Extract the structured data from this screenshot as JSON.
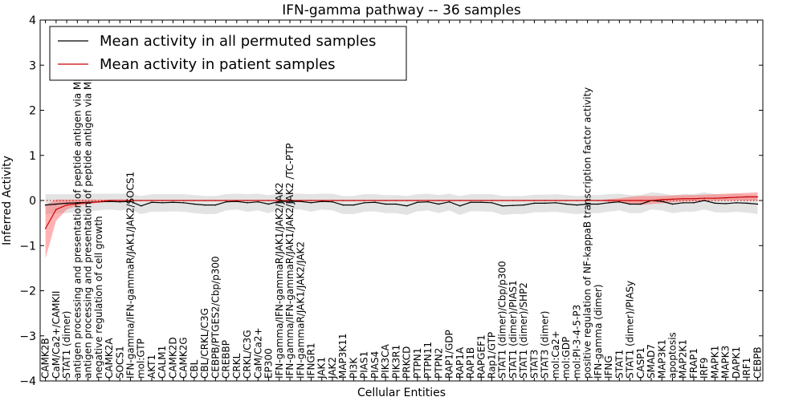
{
  "chart_data": {
    "type": "line",
    "title": "IFN-gamma pathway -- 36 samples",
    "xlabel": "Cellular Entities",
    "ylabel": "Inferred Activity",
    "ylim": [
      -4,
      4
    ],
    "yticks": [
      -4,
      -3,
      -2,
      -1,
      0,
      1,
      2,
      3,
      4
    ],
    "ytick_labels": [
      "−4",
      "−3",
      "−2",
      "−1",
      "0",
      "1",
      "2",
      "3",
      "4"
    ],
    "legend_position": "top-left",
    "categories": [
      "CAMK2B",
      "CaM/Ca2+/CAMKII",
      "STAT1 (dimer)",
      "antigen processing and presentation of peptide antigen via MHC class I",
      "antigen processing and presentation of peptide antigen via MHC class II",
      "negative regulation of cell growth",
      "CAMK2A",
      "SOCS1",
      "IFN-gamma/IFN-gammaR/JAK1/JAK2/SOCS1",
      "mol:GTP",
      "AKT1",
      "CALM1",
      "CAMK2D",
      "CAMK2G",
      "CBL",
      "CBL/CRKL/C3G",
      "CEBPB/PTGES2/Cbp/p300",
      "CREBBP",
      "CRKL",
      "CRKL/C3G",
      "CaM/Ca2+",
      "EP300",
      "IFN-gamma/IFN-gammaR/JAK1/JAK2/JAK2",
      "IFN-gamma/IFN-gammaR/JAK1/JAK2/JAK2 /TC-PTP",
      "IFN-gammaR/JAK1/JAK2/JAK2",
      "IFNGR1",
      "JAK1",
      "JAK2",
      "MAP3K11",
      "PI3K",
      "PIAS1",
      "PIAS4",
      "PIK3CA",
      "PIK3R1",
      "PRKCD",
      "PTPN1",
      "PTPN11",
      "PTPN2",
      "RAP1/GDP",
      "RAP1A",
      "RAP1B",
      "RAPGEF1",
      "Rap1/GTP",
      "STAT1 (dimer)/Cbp/p300",
      "STAT1 (dimer)/PIAS1",
      "STAT1 (dimer)/SHP2",
      "STAT3",
      "STAT3 (dimer)",
      "mol:Ca2+",
      "mol:GDP",
      "mol:PI-3-4-5-P3",
      "positive regulation of NF-kappaB transcription factor activity",
      "IFN-gamma (dimer)",
      "IFNG",
      "STAT1",
      "STAT1 (dimer)/PIASy",
      "CASP1",
      "SMAD7",
      "MAP3K1",
      "apoptosis",
      "MAP2K1",
      "FRAP1",
      "IRF9",
      "MAPK1",
      "MAPK3",
      "DAPK1",
      "IRF1",
      "CEBPB"
    ],
    "series": [
      {
        "name": "Mean activity in all permuted samples",
        "color": "#000000",
        "values": [
          -0.1,
          -0.08,
          -0.06,
          -0.05,
          -0.04,
          -0.03,
          -0.02,
          -0.03,
          -0.02,
          -0.12,
          -0.04,
          -0.05,
          -0.04,
          -0.05,
          -0.08,
          -0.1,
          -0.1,
          -0.03,
          -0.02,
          -0.05,
          -0.03,
          -0.08,
          -0.02,
          -0.02,
          -0.02,
          -0.05,
          -0.02,
          -0.03,
          -0.1,
          -0.1,
          -0.05,
          -0.04,
          -0.08,
          -0.08,
          -0.12,
          -0.04,
          -0.03,
          -0.08,
          -0.03,
          -0.12,
          -0.04,
          -0.04,
          -0.05,
          -0.12,
          -0.11,
          -0.1,
          -0.06,
          -0.06,
          -0.05,
          -0.08,
          -0.1,
          -0.08,
          -0.08,
          -0.05,
          -0.03,
          -0.08,
          -0.08,
          0.0,
          -0.02,
          -0.08,
          -0.05,
          -0.05,
          0.0,
          -0.06,
          -0.07,
          -0.05,
          -0.06,
          -0.08
        ],
        "band_lower": [
          -0.3,
          -0.28,
          -0.28,
          -0.25,
          -0.24,
          -0.22,
          -0.2,
          -0.22,
          -0.2,
          -0.3,
          -0.25,
          -0.25,
          -0.24,
          -0.25,
          -0.28,
          -0.3,
          -0.3,
          -0.22,
          -0.2,
          -0.25,
          -0.22,
          -0.28,
          -0.2,
          -0.2,
          -0.2,
          -0.25,
          -0.2,
          -0.22,
          -0.3,
          -0.3,
          -0.25,
          -0.24,
          -0.28,
          -0.28,
          -0.32,
          -0.24,
          -0.22,
          -0.28,
          -0.22,
          -0.32,
          -0.24,
          -0.24,
          -0.25,
          -0.32,
          -0.3,
          -0.3,
          -0.26,
          -0.26,
          -0.25,
          -0.28,
          -0.3,
          -0.28,
          -0.28,
          -0.25,
          -0.22,
          -0.28,
          -0.28,
          -0.2,
          -0.22,
          -0.28,
          -0.25,
          -0.25,
          -0.2,
          -0.26,
          -0.27,
          -0.25,
          -0.27,
          -0.3
        ],
        "band_upper": [
          0.14,
          0.14,
          0.14,
          0.14,
          0.15,
          0.15,
          0.15,
          0.15,
          0.15,
          0.1,
          0.14,
          0.14,
          0.14,
          0.14,
          0.12,
          0.1,
          0.1,
          0.14,
          0.15,
          0.14,
          0.15,
          0.12,
          0.15,
          0.15,
          0.15,
          0.14,
          0.15,
          0.15,
          0.1,
          0.1,
          0.14,
          0.14,
          0.12,
          0.12,
          0.1,
          0.14,
          0.15,
          0.12,
          0.15,
          0.1,
          0.14,
          0.14,
          0.14,
          0.1,
          0.1,
          0.1,
          0.13,
          0.13,
          0.14,
          0.12,
          0.1,
          0.12,
          0.12,
          0.14,
          0.15,
          0.12,
          0.12,
          0.18,
          0.16,
          0.12,
          0.14,
          0.14,
          0.18,
          0.14,
          0.13,
          0.14,
          0.13,
          0.12
        ]
      },
      {
        "name": "Mean activity in patient samples",
        "color": "#cc0000",
        "values": [
          -0.62,
          -0.2,
          -0.1,
          -0.07,
          -0.05,
          -0.03,
          0.0,
          0.0,
          0.0,
          0.0,
          0.0,
          0.0,
          0.0,
          0.0,
          0.0,
          0.0,
          0.0,
          0.0,
          0.0,
          0.0,
          0.0,
          0.0,
          0.0,
          0.0,
          0.0,
          0.0,
          0.0,
          0.0,
          0.0,
          0.0,
          0.0,
          0.0,
          0.0,
          0.0,
          0.0,
          0.0,
          0.0,
          0.0,
          0.0,
          0.0,
          0.0,
          0.0,
          0.0,
          0.0,
          0.0,
          0.0,
          0.0,
          0.0,
          0.0,
          0.0,
          0.0,
          0.0,
          0.0,
          0.0,
          0.0,
          0.0,
          0.0,
          0.0,
          0.02,
          0.03,
          0.04,
          0.04,
          0.05,
          0.05,
          0.06,
          0.07,
          0.08,
          0.08
        ],
        "band_lower": [
          -1.28,
          -0.45,
          -0.2,
          -0.12,
          -0.08,
          -0.05,
          -0.02,
          -0.01,
          -0.01,
          0.0,
          0.0,
          0.0,
          0.0,
          0.0,
          0.0,
          0.0,
          0.0,
          0.0,
          0.0,
          0.0,
          0.0,
          0.0,
          0.0,
          0.0,
          0.0,
          0.0,
          0.0,
          0.0,
          0.0,
          0.0,
          0.0,
          0.0,
          0.0,
          0.0,
          0.0,
          0.0,
          0.0,
          0.0,
          0.0,
          0.0,
          0.0,
          0.0,
          0.0,
          0.0,
          0.0,
          0.0,
          0.0,
          0.0,
          0.0,
          0.0,
          0.0,
          0.0,
          0.0,
          -0.03,
          -0.05,
          -0.08,
          -0.1,
          -0.08,
          -0.06,
          -0.04,
          -0.02,
          -0.02,
          0.0,
          0.0,
          0.0,
          0.0,
          0.0,
          0.0
        ],
        "band_upper": [
          -0.1,
          0.02,
          0.02,
          0.02,
          0.02,
          0.02,
          0.02,
          0.02,
          0.01,
          0.0,
          0.0,
          0.0,
          0.0,
          0.0,
          0.0,
          0.0,
          0.0,
          0.0,
          0.0,
          0.0,
          0.0,
          0.0,
          0.0,
          0.0,
          0.0,
          0.0,
          0.0,
          0.0,
          0.0,
          0.0,
          0.0,
          0.0,
          0.0,
          0.0,
          0.0,
          0.0,
          0.0,
          0.0,
          0.0,
          0.0,
          0.0,
          0.0,
          0.0,
          0.0,
          0.0,
          0.0,
          0.0,
          0.0,
          0.0,
          0.0,
          0.0,
          0.0,
          0.0,
          0.03,
          0.05,
          0.08,
          0.1,
          0.1,
          0.1,
          0.11,
          0.12,
          0.12,
          0.13,
          0.14,
          0.15,
          0.16,
          0.17,
          0.18
        ]
      }
    ]
  }
}
